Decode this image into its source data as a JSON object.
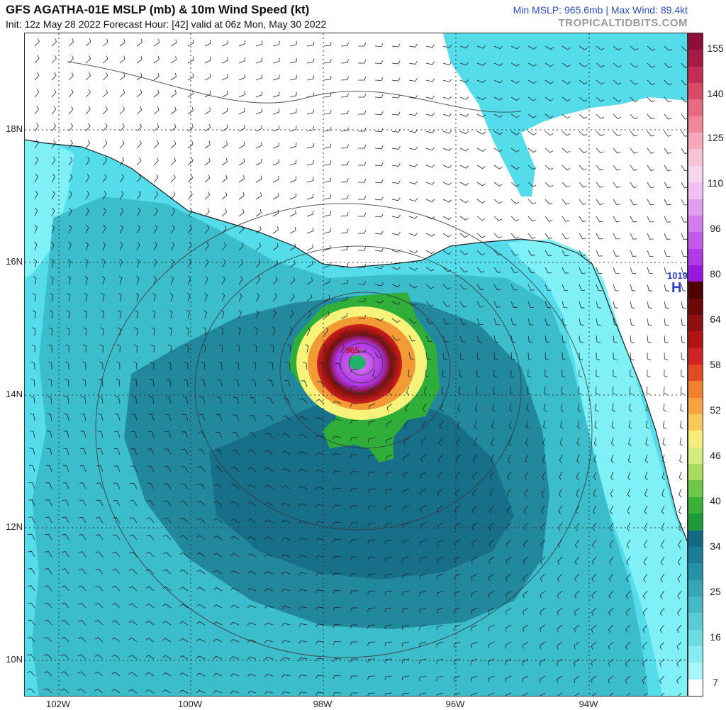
{
  "header": {
    "title": "GFS AGATHA-01E MSLP (mb) & 10m Wind Speed (kt)",
    "subtitle": "Init: 12z May 28 2022   Forecast Hour: [42]   valid at 06z Mon, May 30 2022",
    "stats": "Min MSLP: 965.6mb | Max Wind: 89.4kt",
    "brand": "TROPICALTIDBITS.COM"
  },
  "map": {
    "lat_labels": [
      "18N",
      "16N",
      "14N",
      "12N",
      "10N"
    ],
    "lon_labels": [
      "102W",
      "100W",
      "98W",
      "96W",
      "94W"
    ],
    "center_pressure_label": "965",
    "high_label": "H",
    "high_value": "1019",
    "colors": {
      "land": "#ffffff",
      "light_cyan": "#7ff0f5",
      "cyan": "#54dcea",
      "teal": "#3cbdcc",
      "dark_teal": "#22889e",
      "deep_teal": "#176f8a",
      "green": "#2fae3a",
      "yellow": "#f6f27a",
      "orange": "#f19a36",
      "red": "#d0211c",
      "dark_red": "#7c0d0d",
      "purple": "#b033e6",
      "violet": "#d06cf2",
      "high_blue": "#2a3fc0"
    }
  },
  "colorbar": {
    "labels": [
      "155",
      "140",
      "125",
      "110",
      "96",
      "80",
      "64",
      "58",
      "52",
      "46",
      "40",
      "34",
      "25",
      "16",
      "7"
    ],
    "segments": [
      "#8c0f3a",
      "#a51c46",
      "#c22e55",
      "#d94a67",
      "#e66a80",
      "#f0889a",
      "#f6a7b9",
      "#f8c2d6",
      "#f6d6ef",
      "#f2bff2",
      "#e29cf0",
      "#d27cee",
      "#c25aec",
      "#b03be6",
      "#9a18e0",
      "#4e0000",
      "#6d0808",
      "#8f1010",
      "#b01616",
      "#cf2424",
      "#e24a22",
      "#f08030",
      "#f7a344",
      "#f8c85a",
      "#f6ee7a",
      "#d6ec7a",
      "#a8dc5e",
      "#6cc846",
      "#3ab23a",
      "#1e9a3a",
      "#116b85",
      "#1a7e96",
      "#2592a7",
      "#36a6b6",
      "#46b9c6",
      "#58cbd4",
      "#6cdce2",
      "#86ecf2",
      "#a8f6fa",
      "#ffffff"
    ]
  }
}
